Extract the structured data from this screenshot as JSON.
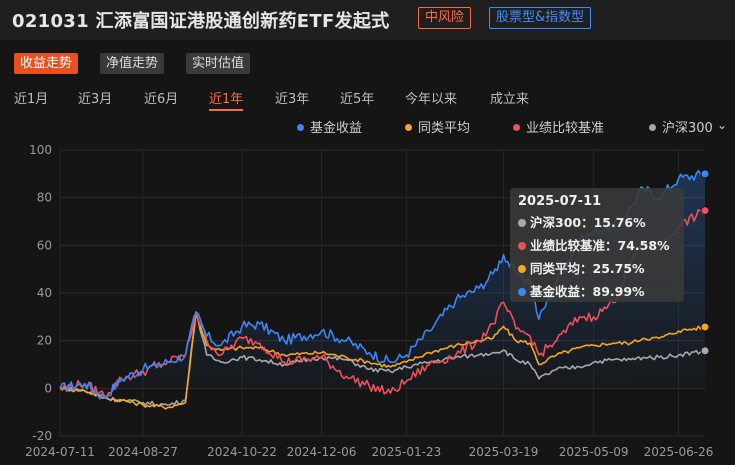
{
  "header": {
    "title": "021031  汇添富国证港股通创新药ETF发起式",
    "risk_badge": "中风险",
    "type_badge": "股票型&指数型"
  },
  "tabs": [
    "收益走势",
    "净值走势",
    "实时估值"
  ],
  "active_tab": "收益走势",
  "periods": [
    "近1月",
    "近3月",
    "近6月",
    "近1年",
    "近3年",
    "近5年",
    "今年以来",
    "成立来"
  ],
  "active_period": "近1年",
  "legend": [
    {
      "label": "基金收益",
      "color": "#3a86f5"
    },
    {
      "label": "同类平均",
      "color": "#f5a623"
    },
    {
      "label": "业绩比较基准",
      "color": "#f0505a"
    },
    {
      "label": "沪深300",
      "color": "#a8a8a8"
    }
  ],
  "legend_more_icon": "chevron-down-icon",
  "tooltip": {
    "date": "2025-07-11",
    "rows": [
      {
        "label": "沪深300：15.76%",
        "color": "#a8a8a8"
      },
      {
        "label": "业绩比较基准：74.58%",
        "color": "#f0505a"
      },
      {
        "label": "同类平均：25.75%",
        "color": "#f5a623"
      },
      {
        "label": "基金收益：89.99%",
        "color": "#3a86f5"
      }
    ]
  },
  "chart_data": {
    "type": "line",
    "ylim": [
      -20,
      100
    ],
    "yticks": [
      -20,
      0,
      20,
      40,
      60,
      80,
      100
    ],
    "xticks": [
      "2024-07-11",
      "2024-08-27",
      "2024-10-22",
      "2024-12-06",
      "2025-01-23",
      "2025-03-19",
      "2025-05-09",
      "2025-06-26"
    ],
    "grid": true,
    "legend_position": "top-right",
    "x_range": [
      "2024-07-11",
      "2025-07-11"
    ],
    "series": [
      {
        "name": "基金收益",
        "color": "#3a86f5",
        "points": [
          [
            "2024-07-11",
            0
          ],
          [
            "2024-07-25",
            2
          ],
          [
            "2024-08-05",
            -4
          ],
          [
            "2024-08-15",
            4
          ],
          [
            "2024-08-27",
            8
          ],
          [
            "2024-09-10",
            11
          ],
          [
            "2024-09-20",
            14
          ],
          [
            "2024-09-26",
            32
          ],
          [
            "2024-10-02",
            22
          ],
          [
            "2024-10-10",
            18
          ],
          [
            "2024-10-22",
            26
          ],
          [
            "2024-11-01",
            27
          ],
          [
            "2024-11-15",
            20
          ],
          [
            "2024-12-06",
            24
          ],
          [
            "2024-12-20",
            20
          ],
          [
            "2025-01-02",
            15
          ],
          [
            "2025-01-14",
            11
          ],
          [
            "2025-01-23",
            14
          ],
          [
            "2025-02-05",
            24
          ],
          [
            "2025-02-20",
            37
          ],
          [
            "2025-03-05",
            42
          ],
          [
            "2025-03-13",
            48
          ],
          [
            "2025-03-19",
            56
          ],
          [
            "2025-03-26",
            48
          ],
          [
            "2025-04-03",
            45
          ],
          [
            "2025-04-08",
            29
          ],
          [
            "2025-04-18",
            45
          ],
          [
            "2025-05-01",
            62
          ],
          [
            "2025-05-09",
            66
          ],
          [
            "2025-05-20",
            68
          ],
          [
            "2025-05-30",
            76
          ],
          [
            "2025-06-06",
            84
          ],
          [
            "2025-06-15",
            80
          ],
          [
            "2025-06-26",
            88
          ],
          [
            "2025-07-11",
            89.99
          ]
        ]
      },
      {
        "name": "同类平均",
        "color": "#f5a623",
        "points": [
          [
            "2024-07-11",
            0
          ],
          [
            "2024-07-25",
            -1
          ],
          [
            "2024-08-05",
            -4
          ],
          [
            "2024-08-15",
            -5
          ],
          [
            "2024-08-27",
            -7
          ],
          [
            "2024-09-10",
            -8
          ],
          [
            "2024-09-20",
            -6
          ],
          [
            "2024-09-26",
            32
          ],
          [
            "2024-10-02",
            18
          ],
          [
            "2024-10-10",
            16
          ],
          [
            "2024-10-22",
            17
          ],
          [
            "2024-11-01",
            17
          ],
          [
            "2024-11-15",
            14
          ],
          [
            "2024-12-06",
            15
          ],
          [
            "2024-12-20",
            13
          ],
          [
            "2025-01-02",
            11
          ],
          [
            "2025-01-14",
            9
          ],
          [
            "2025-01-23",
            11
          ],
          [
            "2025-02-05",
            15
          ],
          [
            "2025-02-20",
            18
          ],
          [
            "2025-03-05",
            20
          ],
          [
            "2025-03-13",
            21
          ],
          [
            "2025-03-19",
            26
          ],
          [
            "2025-03-26",
            20
          ],
          [
            "2025-04-03",
            19
          ],
          [
            "2025-04-08",
            10
          ],
          [
            "2025-04-18",
            14
          ],
          [
            "2025-05-01",
            17
          ],
          [
            "2025-05-09",
            18
          ],
          [
            "2025-05-20",
            19
          ],
          [
            "2025-05-30",
            19
          ],
          [
            "2025-06-06",
            21
          ],
          [
            "2025-06-15",
            21
          ],
          [
            "2025-06-26",
            24
          ],
          [
            "2025-07-11",
            25.75
          ]
        ]
      },
      {
        "name": "业绩比较基准",
        "color": "#f0505a",
        "points": [
          [
            "2024-07-11",
            0
          ],
          [
            "2024-07-25",
            2
          ],
          [
            "2024-08-05",
            -3
          ],
          [
            "2024-08-15",
            4
          ],
          [
            "2024-08-27",
            7
          ],
          [
            "2024-09-10",
            11
          ],
          [
            "2024-09-20",
            14
          ],
          [
            "2024-09-26",
            32
          ],
          [
            "2024-10-02",
            20
          ],
          [
            "2024-10-10",
            14
          ],
          [
            "2024-10-22",
            21
          ],
          [
            "2024-11-01",
            19
          ],
          [
            "2024-11-15",
            11
          ],
          [
            "2024-12-06",
            13
          ],
          [
            "2024-12-20",
            5
          ],
          [
            "2025-01-02",
            1
          ],
          [
            "2025-01-14",
            -2
          ],
          [
            "2025-01-23",
            3
          ],
          [
            "2025-02-05",
            10
          ],
          [
            "2025-02-20",
            14
          ],
          [
            "2025-03-05",
            20
          ],
          [
            "2025-03-13",
            27
          ],
          [
            "2025-03-19",
            36
          ],
          [
            "2025-03-26",
            25
          ],
          [
            "2025-04-03",
            22
          ],
          [
            "2025-04-08",
            14
          ],
          [
            "2025-04-18",
            20
          ],
          [
            "2025-05-01",
            30
          ],
          [
            "2025-05-09",
            30
          ],
          [
            "2025-05-20",
            36
          ],
          [
            "2025-05-30",
            52
          ],
          [
            "2025-06-06",
            62
          ],
          [
            "2025-06-15",
            58
          ],
          [
            "2025-06-26",
            68
          ],
          [
            "2025-07-11",
            74.58
          ]
        ]
      },
      {
        "name": "沪深300",
        "color": "#a8a8a8",
        "points": [
          [
            "2024-07-11",
            0
          ],
          [
            "2024-07-25",
            -1
          ],
          [
            "2024-08-05",
            -4
          ],
          [
            "2024-08-15",
            -5
          ],
          [
            "2024-08-27",
            -6
          ],
          [
            "2024-09-10",
            -7
          ],
          [
            "2024-09-20",
            -5
          ],
          [
            "2024-09-26",
            32
          ],
          [
            "2024-10-02",
            14
          ],
          [
            "2024-10-10",
            11
          ],
          [
            "2024-10-22",
            13
          ],
          [
            "2024-11-01",
            12
          ],
          [
            "2024-11-15",
            10
          ],
          [
            "2024-12-06",
            13
          ],
          [
            "2024-12-20",
            12
          ],
          [
            "2025-01-02",
            8
          ],
          [
            "2025-01-14",
            7
          ],
          [
            "2025-01-23",
            9
          ],
          [
            "2025-02-05",
            11
          ],
          [
            "2025-02-20",
            13
          ],
          [
            "2025-03-05",
            14
          ],
          [
            "2025-03-13",
            15
          ],
          [
            "2025-03-19",
            16
          ],
          [
            "2025-03-26",
            12
          ],
          [
            "2025-04-03",
            10
          ],
          [
            "2025-04-08",
            4
          ],
          [
            "2025-04-18",
            8
          ],
          [
            "2025-05-01",
            9
          ],
          [
            "2025-05-09",
            11
          ],
          [
            "2025-05-20",
            12
          ],
          [
            "2025-05-30",
            12
          ],
          [
            "2025-06-06",
            13
          ],
          [
            "2025-06-15",
            13
          ],
          [
            "2025-06-26",
            14
          ],
          [
            "2025-07-11",
            15.76
          ]
        ]
      }
    ]
  }
}
